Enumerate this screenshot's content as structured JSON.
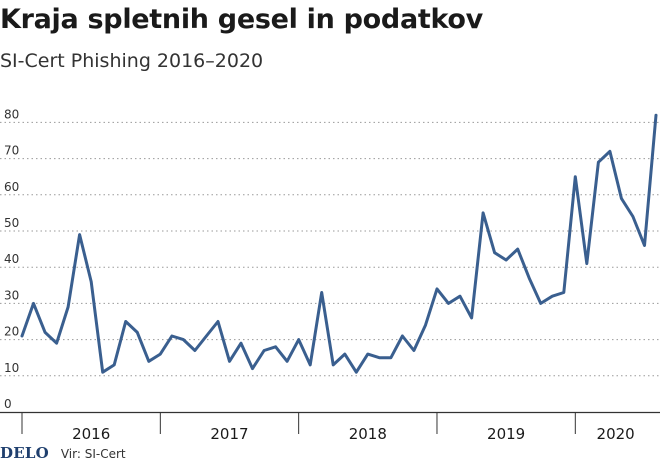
{
  "chart_data": {
    "type": "line",
    "title": "Kraja spletnih gesel in podatkov",
    "subtitle": "SI-Cert Phishing 2016–2020",
    "xlabel": "",
    "ylabel": "",
    "ylim": [
      0,
      90
    ],
    "yticks": [
      0,
      10,
      20,
      30,
      40,
      50,
      60,
      70,
      80
    ],
    "grid": "horizontal-dotted",
    "line_color": "#3a5f8f",
    "year_labels": [
      "2016",
      "2017",
      "2018",
      "2019",
      "2020"
    ],
    "series": [
      {
        "values": [
          21,
          30,
          22,
          19,
          29,
          49,
          36,
          11,
          13,
          25,
          22,
          14,
          16,
          21,
          20,
          17,
          21,
          25,
          14,
          19,
          12,
          17,
          18,
          14,
          20,
          13,
          33,
          13,
          16,
          11,
          16,
          15,
          15,
          21,
          17,
          24,
          34,
          30,
          32,
          26,
          55,
          44,
          42,
          45,
          37,
          30,
          32,
          33,
          65,
          41,
          69,
          72,
          59,
          54,
          46,
          82
        ]
      }
    ]
  },
  "footer": {
    "logo": "DELO",
    "source": "Vir: SI-Cert"
  }
}
